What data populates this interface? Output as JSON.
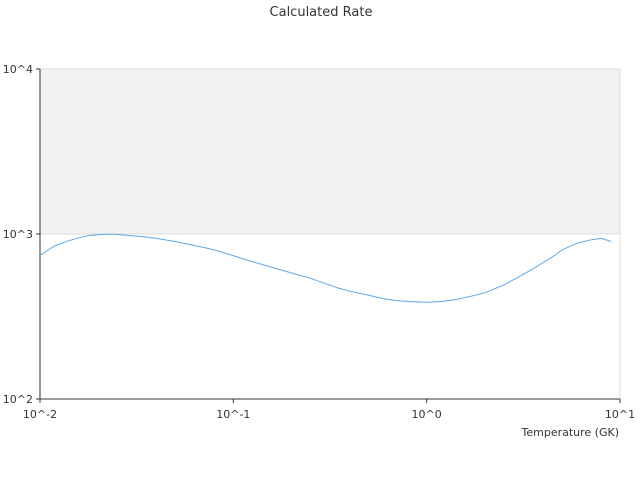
{
  "chart_data": {
    "type": "line",
    "title": "Calculated Rate",
    "xlabel": "Temperature (GK)",
    "ylabel": "",
    "x_scale": "log",
    "y_scale": "log",
    "xlim": [
      0.01,
      10
    ],
    "ylim": [
      100,
      10000
    ],
    "x_ticks": [
      {
        "value": 0.01,
        "label": "10^-2"
      },
      {
        "value": 0.1,
        "label": "10^-1"
      },
      {
        "value": 1,
        "label": "10^0"
      },
      {
        "value": 10,
        "label": "10^1"
      }
    ],
    "y_ticks": [
      {
        "value": 100,
        "label": "10^2"
      },
      {
        "value": 1000,
        "label": "10^3"
      },
      {
        "value": 10000,
        "label": "10^4"
      }
    ],
    "shaded_band": {
      "y_from": 1000,
      "y_to": 10000
    },
    "grid": false,
    "legend": "none",
    "colors": {
      "line": "#5fa8e8",
      "band": "#f2f2f2",
      "frame": "#dddddd",
      "axis": "#333333"
    },
    "series": [
      {
        "x": [
          0.01,
          0.011,
          0.012,
          0.014,
          0.016,
          0.018,
          0.02,
          0.023,
          0.026,
          0.03,
          0.035,
          0.04,
          0.05,
          0.06,
          0.07,
          0.08,
          0.1,
          0.12,
          0.15,
          0.2,
          0.25,
          0.3,
          0.35,
          0.4,
          0.5,
          0.6,
          0.7,
          0.8,
          1.0,
          1.2,
          1.4,
          1.7,
          2.0,
          2.5,
          3.0,
          3.5,
          4.0,
          4.5,
          5.0,
          6.0,
          7.0,
          8.0,
          9.0
        ],
        "y": [
          740,
          800,
          850,
          910,
          950,
          980,
          990,
          1000,
          990,
          975,
          960,
          940,
          900,
          860,
          830,
          800,
          740,
          690,
          640,
          580,
          540,
          500,
          470,
          450,
          425,
          405,
          395,
          390,
          385,
          390,
          400,
          420,
          440,
          490,
          550,
          610,
          670,
          730,
          800,
          880,
          920,
          940,
          900
        ]
      }
    ]
  }
}
